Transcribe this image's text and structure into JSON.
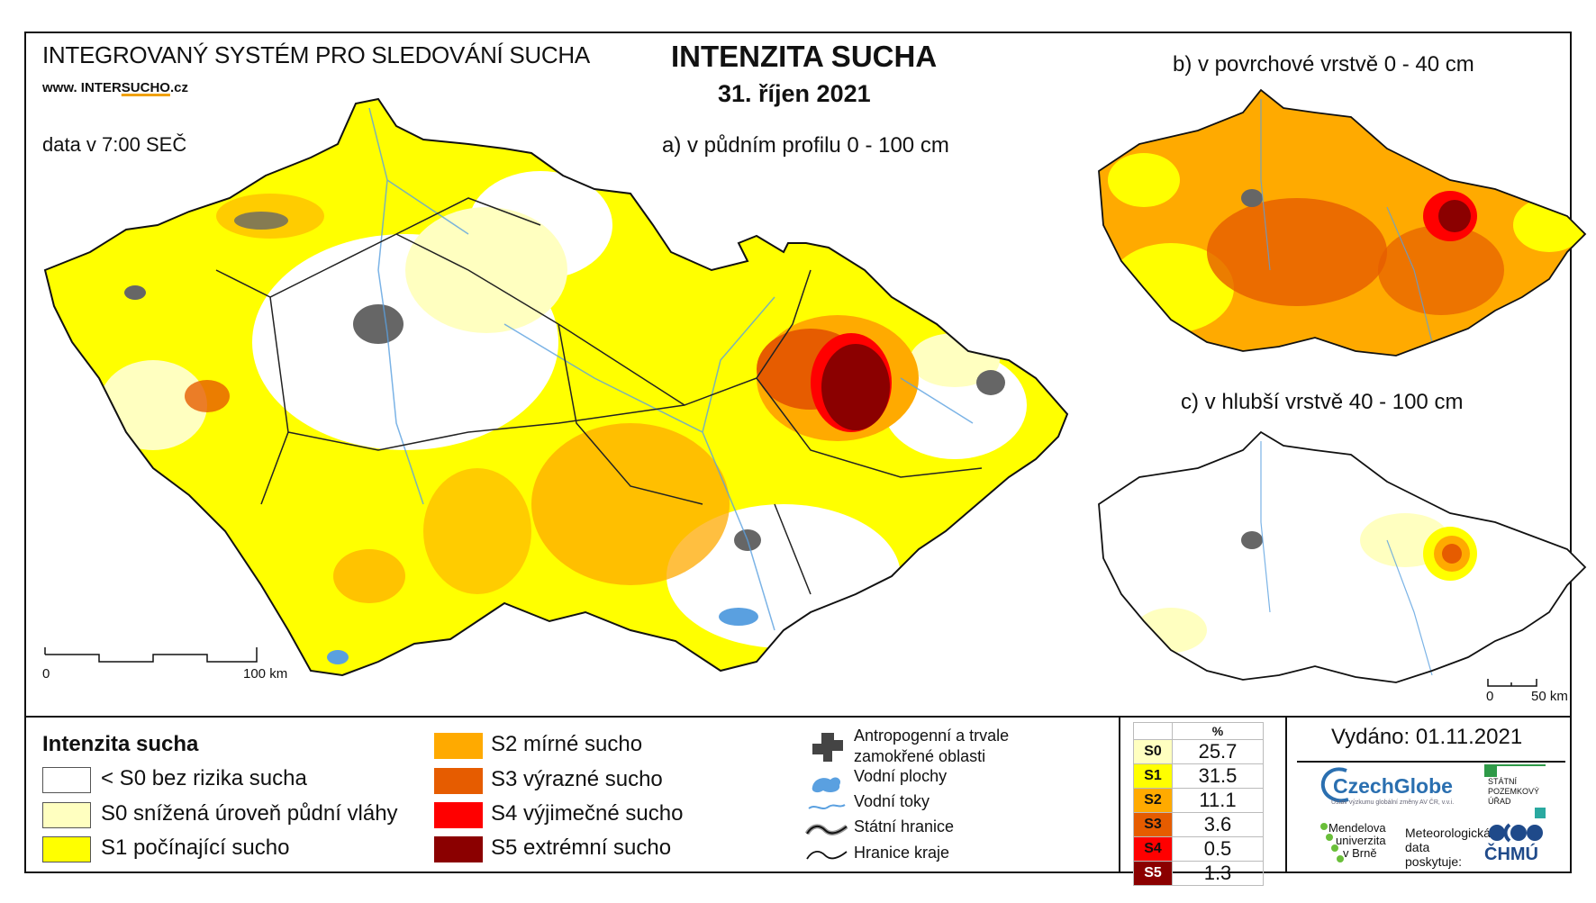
{
  "header": {
    "system_title": "INTEGROVANÝ SYSTÉM PRO SLEDOVÁNÍ SUCHA",
    "url_prefix": "www. INTER",
    "url_highlight": "SUCHO",
    "url_suffix": ".cz",
    "data_time": "data v 7:00 SEČ",
    "main_title": "INTENZITA SUCHA",
    "date": "31. říjen 2021"
  },
  "maps": {
    "a_title": "a) v půdním profilu 0 - 100 cm",
    "b_title": "b) v povrchové vrstvě 0 - 40 cm",
    "c_title": "c) v hlubší vrstvě 40 - 100 cm",
    "a_scale": {
      "start": "0",
      "end": "100 km"
    },
    "c_scale": {
      "start": "0",
      "end": "50 km"
    }
  },
  "legend": {
    "title": "Intenzita sucha",
    "classes": [
      {
        "label": "< S0 bez rizika sucha",
        "color": "#ffffff"
      },
      {
        "label": "S0 snížená úroveň půdní vláhy",
        "color": "#ffffc0"
      },
      {
        "label": "S1 počínající sucho",
        "color": "#ffff00"
      },
      {
        "label": "S2 mírné sucho",
        "color": "#ffaa00"
      },
      {
        "label": "S3 výrazné sucho",
        "color": "#e65c00"
      },
      {
        "label": "S4 výjimečné sucho",
        "color": "#ff0000"
      },
      {
        "label": "S5 extrémní sucho",
        "color": "#8b0000"
      }
    ],
    "symbols": [
      {
        "icon": "anthropogenic-area-icon",
        "label_line1": "Antropogenní a trvale",
        "label_line2": "zamokřené oblasti"
      },
      {
        "icon": "water-area-icon",
        "label_line1": "Vodní plochy"
      },
      {
        "icon": "water-stream-icon",
        "label_line1": "Vodní toky"
      },
      {
        "icon": "state-border-icon",
        "label_line1": "Státní hranice"
      },
      {
        "icon": "region-border-icon",
        "label_line1": "Hranice kraje"
      }
    ]
  },
  "stats": {
    "unit_header": "%",
    "rows": [
      {
        "class": "S0",
        "value": "25.7",
        "color": "#ffffc0"
      },
      {
        "class": "S1",
        "value": "31.5",
        "color": "#ffff00"
      },
      {
        "class": "S2",
        "value": "11.1",
        "color": "#ffaa00"
      },
      {
        "class": "S3",
        "value": "3.6",
        "color": "#e65c00"
      },
      {
        "class": "S4",
        "value": "0.5",
        "color": "#ff0000"
      },
      {
        "class": "S5",
        "value": "1.3",
        "color": "#8b0000"
      }
    ]
  },
  "footer": {
    "issued": "Vydáno: 01.11.2021",
    "czechglobe": "CzechGlobe",
    "czechglobe_sub": "Ústav výzkumu globální změny AV ČR, v.v.i.",
    "spu_line1": "STÁTNÍ",
    "spu_line2": "POZEMKOVÝ",
    "spu_line3": "ÚŘAD",
    "mendel_line1": "Mendelova",
    "mendel_line2": "univerzita",
    "mendel_line3": "v Brně",
    "meteo_line1": "Meteorologická",
    "meteo_line2": "data",
    "meteo_line3": "poskytuje:",
    "chmu": "ČHMÚ"
  }
}
